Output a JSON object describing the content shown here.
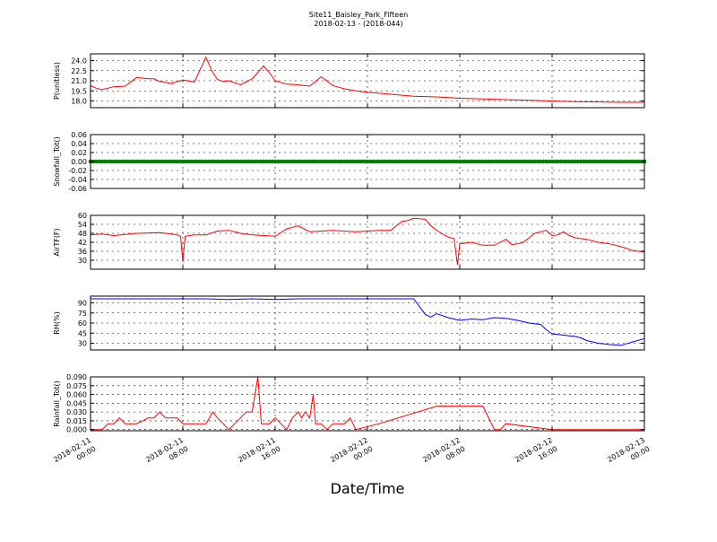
{
  "figure": {
    "title": "Site11_Baisley_Park_Fifteen",
    "subtitle": "2018-02-13 - (2018-044)",
    "xlabel": "Date/Time"
  },
  "chart_data": [
    {
      "type": "line",
      "ylabel": "P(unitless)",
      "ylim": [
        17.0,
        25.0
      ],
      "yticks": [
        "24.0",
        "22.5",
        "21.0",
        "19.5",
        "18.0"
      ],
      "ytick_values": [
        24.0,
        22.5,
        21.0,
        19.5,
        18.0
      ],
      "grid": true,
      "color": "#ff0000",
      "series": [
        {
          "x": [
            0,
            0.5,
            1,
            2,
            3,
            4,
            5,
            5.5,
            6,
            7,
            8,
            9,
            10,
            10.5,
            11,
            11.5,
            12,
            12.5,
            13,
            14,
            15,
            15.5,
            16,
            17,
            18,
            19,
            20,
            21,
            22,
            23,
            24,
            26,
            28,
            30,
            32,
            34,
            36,
            38,
            40,
            42,
            44,
            46,
            48
          ],
          "values": [
            20.3,
            19.9,
            19.7,
            20.1,
            20.2,
            21.5,
            21.3,
            21.3,
            20.9,
            20.6,
            21.1,
            20.8,
            24.5,
            22.5,
            21.2,
            20.9,
            21.0,
            20.7,
            20.4,
            21.3,
            23.2,
            22.2,
            21.0,
            20.5,
            20.4,
            20.2,
            21.6,
            20.3,
            19.8,
            19.5,
            19.3,
            19.0,
            18.7,
            18.6,
            18.4,
            18.3,
            18.2,
            18.1,
            18.0,
            17.9,
            17.85,
            17.8,
            17.8
          ]
        }
      ]
    },
    {
      "type": "scatter",
      "ylabel": "Snowfall_Tot()",
      "ylim": [
        -0.06,
        0.06
      ],
      "yticks": [
        "0.06",
        "0.04",
        "0.02",
        "0.00",
        "-0.02",
        "-0.04",
        "-0.06"
      ],
      "ytick_values": [
        0.06,
        0.04,
        0.02,
        0.0,
        -0.02,
        -0.04,
        -0.06
      ],
      "grid": true,
      "color": "#008000",
      "series": [
        {
          "x_range": [
            0,
            48
          ],
          "step": 0.25,
          "value": 0.0
        }
      ]
    },
    {
      "type": "line",
      "ylabel": "AirTF(F)",
      "ylim": [
        24,
        60
      ],
      "yticks": [
        "60",
        "54",
        "48",
        "42",
        "36",
        "30"
      ],
      "ytick_values": [
        60,
        54,
        48,
        42,
        36,
        30
      ],
      "grid": true,
      "color": "#ff0000",
      "series": [
        {
          "x": [
            0,
            1,
            2,
            4,
            6,
            7,
            7.5,
            7.8,
            8.0,
            8.2,
            9,
            10,
            11,
            12,
            13,
            14,
            15,
            16,
            17,
            17.5,
            18,
            18.5,
            19,
            20,
            21,
            22,
            23,
            24,
            25,
            26,
            27,
            27.5,
            28,
            29,
            29.5,
            30,
            30.5,
            31,
            31.5,
            31.8,
            32,
            33,
            34,
            35,
            36,
            36.5,
            37,
            37.5,
            38,
            38.5,
            39,
            39.5,
            40,
            40.5,
            41,
            41.5,
            42,
            43,
            44,
            45,
            46,
            47,
            48
          ],
          "values": [
            47,
            47.5,
            46.5,
            48,
            48.5,
            47.5,
            47,
            46,
            29,
            46,
            47,
            47,
            49.5,
            50,
            48,
            47,
            46.5,
            46,
            51,
            52,
            53,
            51,
            49,
            49.5,
            50,
            49.5,
            49,
            49.5,
            50,
            50,
            56,
            56.5,
            58,
            57.5,
            53,
            50,
            47.5,
            45.5,
            44.5,
            27,
            41,
            42,
            40,
            40,
            44,
            40.5,
            41,
            42,
            45,
            48,
            49,
            50,
            46.5,
            47,
            49,
            46.5,
            45,
            44,
            42,
            41,
            39,
            36.5,
            35.5
          ]
        }
      ]
    },
    {
      "type": "line",
      "ylabel": "RH(%)",
      "ylim": [
        20,
        100
      ],
      "yticks": [
        "90",
        "75",
        "60",
        "45",
        "30"
      ],
      "ytick_values": [
        90,
        75,
        60,
        45,
        30
      ],
      "grid": true,
      "color": "#0000ff",
      "series": [
        {
          "x": [
            0,
            2,
            4,
            6,
            8,
            10,
            12,
            14,
            16,
            18,
            20,
            22,
            24,
            26,
            28,
            28.5,
            29,
            29.5,
            30,
            31,
            32,
            33,
            34,
            35,
            36,
            37,
            38,
            39,
            39.5,
            40,
            41,
            42,
            42.5,
            43,
            43.5,
            44,
            45,
            46,
            47,
            48
          ],
          "values": [
            96,
            96,
            96,
            96,
            96,
            96,
            95,
            96,
            95,
            96,
            96,
            96,
            96,
            96,
            96,
            85,
            73,
            69,
            74,
            68,
            64,
            66,
            65,
            68,
            67,
            64,
            60,
            58,
            50,
            44,
            42,
            40,
            38,
            34,
            32,
            30,
            28,
            27,
            32,
            37
          ]
        }
      ]
    },
    {
      "type": "line",
      "ylabel": "Rainfall_Tot()",
      "ylim": [
        -0.002,
        0.09
      ],
      "yticks": [
        "0.090",
        "0.075",
        "0.060",
        "0.045",
        "0.030",
        "0.015",
        "0.000"
      ],
      "ytick_values": [
        0.09,
        0.075,
        0.06,
        0.045,
        0.03,
        0.015,
        0.0
      ],
      "grid": true,
      "color": "#ff0000",
      "series": [
        {
          "x": [
            0,
            1,
            1.5,
            2,
            2.5,
            3,
            3.5,
            4,
            5,
            5.5,
            6,
            6.5,
            7,
            7.5,
            8,
            8.5,
            9,
            9.5,
            10,
            10.3,
            10.6,
            11,
            12,
            12.5,
            13,
            13.5,
            14,
            14.5,
            14.8,
            15.2,
            15.5,
            16,
            16.5,
            17,
            17.5,
            18,
            18.3,
            18.6,
            19,
            19.3,
            19.5,
            20,
            20.5,
            21,
            21.5,
            22,
            22.5,
            23,
            25,
            30,
            34,
            35,
            35.5,
            36,
            40,
            44,
            48
          ],
          "values": [
            0,
            0,
            0.01,
            0.01,
            0.02,
            0.01,
            0.01,
            0.01,
            0.02,
            0.02,
            0.03,
            0.02,
            0.02,
            0.02,
            0.01,
            0.01,
            0.01,
            0.01,
            0.01,
            0.02,
            0.03,
            0.02,
            0,
            0.01,
            0.02,
            0.03,
            0.03,
            0.09,
            0.01,
            0.01,
            0.01,
            0.02,
            0.01,
            0,
            0.02,
            0.03,
            0.02,
            0.03,
            0.02,
            0.06,
            0.01,
            0.01,
            0,
            0.01,
            0.01,
            0.01,
            0.02,
            0,
            0.01,
            0.04,
            0.04,
            0,
            0,
            0.01,
            0,
            0,
            0
          ]
        }
      ]
    }
  ],
  "xaxis": {
    "range": [
      0,
      48
    ],
    "tick_positions": [
      0,
      8,
      16,
      24,
      32,
      40,
      48
    ],
    "tick_labels": [
      [
        "2018-02-11",
        "00:00"
      ],
      [
        "2018-02-11",
        "08:00"
      ],
      [
        "2018-02-11",
        "16:00"
      ],
      [
        "2018-02-12",
        "00:00"
      ],
      [
        "2018-02-12",
        "08:00"
      ],
      [
        "2018-02-12",
        "16:00"
      ],
      [
        "2018-02-13",
        "00:00"
      ]
    ]
  }
}
